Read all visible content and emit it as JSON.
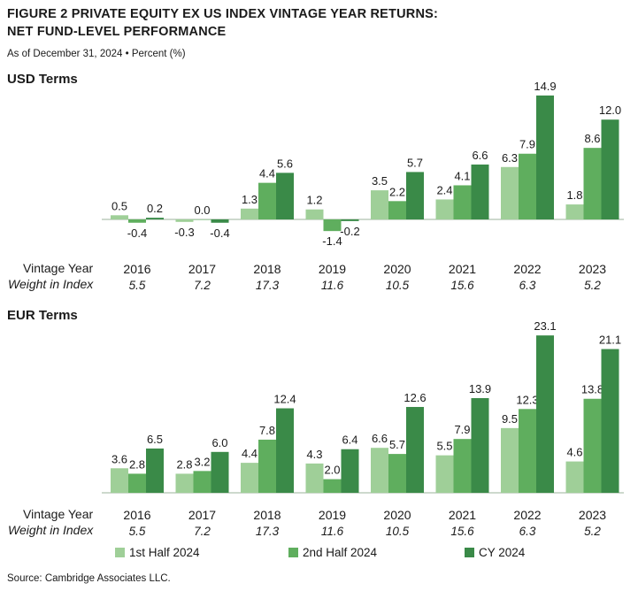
{
  "figure": {
    "title_line1": "FIGURE 2   PRIVATE EQUITY EX US INDEX VINTAGE YEAR RETURNS:",
    "title_line2": "NET FUND-LEVEL PERFORMANCE",
    "subtitle": "As of December 31, 2024 • Percent (%)",
    "source": "Source: Cambridge Associates LLC.",
    "row_label_vintage": "Vintage Year",
    "row_label_weight": "Weight in Index"
  },
  "colors": {
    "series1": "#9fcf98",
    "series2": "#5fae5e",
    "series3": "#3a8a48",
    "baseline": "#7a9a7a"
  },
  "legend": [
    "1st Half 2024",
    "2nd Half 2024",
    "CY 2024"
  ],
  "chart_data": [
    {
      "type": "bar",
      "title": "USD Terms",
      "categories": [
        "2016",
        "2017",
        "2018",
        "2019",
        "2020",
        "2021",
        "2022",
        "2023"
      ],
      "weights": [
        "5.5",
        "7.2",
        "17.3",
        "11.6",
        "10.5",
        "15.6",
        "6.3",
        "5.2"
      ],
      "series": [
        {
          "name": "1st Half 2024",
          "values": [
            0.5,
            -0.3,
            1.3,
            1.2,
            3.5,
            2.4,
            6.3,
            1.8
          ]
        },
        {
          "name": "2nd Half 2024",
          "values": [
            -0.4,
            0.0,
            4.4,
            -1.4,
            2.2,
            4.1,
            7.9,
            8.6
          ]
        },
        {
          "name": "CY 2024",
          "values": [
            0.2,
            -0.4,
            5.6,
            -0.2,
            5.7,
            6.6,
            14.9,
            12.0
          ]
        }
      ],
      "labels": [
        [
          "0.5",
          "-0.3",
          "1.3",
          "1.2",
          "3.5",
          "2.4",
          "6.3",
          "1.8"
        ],
        [
          "-0.4",
          "0.0",
          "4.4",
          "-1.4",
          "2.2",
          "4.1",
          "7.9",
          "8.6"
        ],
        [
          "0.2",
          "-0.4",
          "5.6",
          "-0.2",
          "5.7",
          "6.6",
          "14.9",
          "12.0"
        ]
      ]
    },
    {
      "type": "bar",
      "title": "EUR Terms",
      "categories": [
        "2016",
        "2017",
        "2018",
        "2019",
        "2020",
        "2021",
        "2022",
        "2023"
      ],
      "weights": [
        "5.5",
        "7.2",
        "17.3",
        "11.6",
        "10.5",
        "15.6",
        "6.3",
        "5.2"
      ],
      "series": [
        {
          "name": "1st Half 2024",
          "values": [
            3.6,
            2.8,
            4.4,
            4.3,
            6.6,
            5.5,
            9.5,
            4.6
          ]
        },
        {
          "name": "2nd Half 2024",
          "values": [
            2.8,
            3.2,
            7.8,
            2.0,
            5.7,
            7.9,
            12.3,
            13.8
          ]
        },
        {
          "name": "CY 2024",
          "values": [
            6.5,
            6.0,
            12.4,
            6.4,
            12.6,
            13.9,
            23.1,
            21.1
          ]
        }
      ],
      "labels": [
        [
          "3.6",
          "2.8",
          "4.4",
          "4.3",
          "6.6",
          "5.5",
          "9.5",
          "4.6"
        ],
        [
          "2.8",
          "3.2",
          "7.8",
          "2.0",
          "5.7",
          "7.9",
          "12.3",
          "13.8"
        ],
        [
          "6.5",
          "6.0",
          "12.4",
          "6.4",
          "12.6",
          "13.9",
          "23.1",
          "21.1"
        ]
      ]
    }
  ]
}
